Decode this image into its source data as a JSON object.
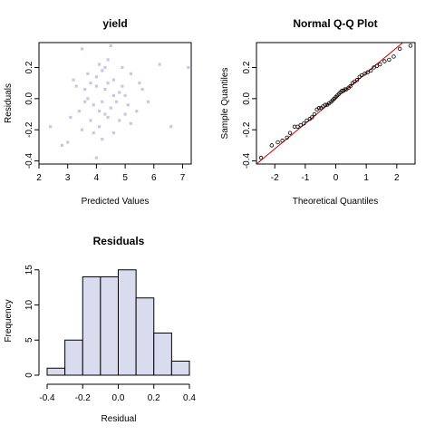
{
  "chart_data": [
    {
      "type": "scatter",
      "title": "yield",
      "xlabel": "Predicted Values",
      "ylabel": "Residuals",
      "xlim": [
        2,
        7.3
      ],
      "ylim": [
        -0.42,
        0.36
      ],
      "xticks": [
        2,
        3,
        4,
        5,
        6,
        7
      ],
      "yticks": [
        -0.4,
        -0.2,
        0.0,
        0.2
      ],
      "ytick_labels": [
        "-0.4",
        "-0.2",
        "0.0",
        "0.2"
      ],
      "point_color": "#c8c8e6",
      "points": [
        [
          3.5,
          0.32
        ],
        [
          4.5,
          0.34
        ],
        [
          4.4,
          0.25
        ],
        [
          4.1,
          0.22
        ],
        [
          4.3,
          0.2
        ],
        [
          6.2,
          0.22
        ],
        [
          7.2,
          0.2
        ],
        [
          3.2,
          0.12
        ],
        [
          4.2,
          0.18
        ],
        [
          5.2,
          0.16
        ],
        [
          3.8,
          0.1
        ],
        [
          4.0,
          0.08
        ],
        [
          4.6,
          0.12
        ],
        [
          5.5,
          0.1
        ],
        [
          4.8,
          0.04
        ],
        [
          3.7,
          0.0
        ],
        [
          4.2,
          -0.02
        ],
        [
          5.0,
          0.02
        ],
        [
          3.9,
          -0.04
        ],
        [
          4.5,
          -0.06
        ],
        [
          3.4,
          -0.08
        ],
        [
          4.3,
          -0.1
        ],
        [
          5.4,
          -0.08
        ],
        [
          3.1,
          -0.12
        ],
        [
          3.8,
          -0.14
        ],
        [
          4.4,
          -0.12
        ],
        [
          5.2,
          -0.16
        ],
        [
          2.4,
          -0.18
        ],
        [
          3.5,
          -0.2
        ],
        [
          4.1,
          -0.18
        ],
        [
          4.6,
          -0.22
        ],
        [
          3.0,
          -0.28
        ],
        [
          4.2,
          -0.26
        ],
        [
          6.6,
          -0.18
        ],
        [
          2.8,
          -0.3
        ],
        [
          4.0,
          -0.38
        ],
        [
          5.6,
          0.06
        ],
        [
          4.9,
          0.08
        ],
        [
          3.6,
          0.06
        ],
        [
          4.7,
          -0.02
        ],
        [
          5.1,
          -0.04
        ],
        [
          4.0,
          0.14
        ],
        [
          3.9,
          -0.22
        ],
        [
          4.6,
          0.02
        ],
        [
          3.3,
          0.08
        ],
        [
          5.8,
          -0.02
        ],
        [
          4.3,
          0.06
        ],
        [
          4.8,
          -0.14
        ],
        [
          3.6,
          -0.02
        ],
        [
          4.4,
          0.1
        ],
        [
          5.0,
          -0.1
        ],
        [
          4.1,
          -0.08
        ],
        [
          3.7,
          0.16
        ],
        [
          4.9,
          0.2
        ]
      ]
    },
    {
      "type": "scatter",
      "title": "Normal Q-Q Plot",
      "xlabel": "Theoretical Quantiles",
      "ylabel": "Sample Quantiles",
      "xlim": [
        -2.6,
        2.6
      ],
      "ylim": [
        -0.42,
        0.36
      ],
      "xticks": [
        -2,
        -1,
        0,
        1,
        2
      ],
      "yticks": [
        -0.4,
        -0.2,
        0.0,
        0.2
      ],
      "ytick_labels": [
        "-0.4",
        "-0.2",
        "0.0",
        "0.2"
      ],
      "line_color": "#cc0000",
      "line": [
        [
          -2.6,
          -0.42
        ],
        [
          2.2,
          0.36
        ]
      ],
      "points": [
        [
          -2.45,
          -0.38
        ],
        [
          -2.1,
          -0.3
        ],
        [
          -1.9,
          -0.28
        ],
        [
          -1.75,
          -0.27
        ],
        [
          -1.6,
          -0.25
        ],
        [
          -1.5,
          -0.22
        ],
        [
          -1.35,
          -0.18
        ],
        [
          -1.25,
          -0.18
        ],
        [
          -1.15,
          -0.17
        ],
        [
          -1.05,
          -0.16
        ],
        [
          -0.95,
          -0.14
        ],
        [
          -0.85,
          -0.13
        ],
        [
          -0.78,
          -0.12
        ],
        [
          -0.7,
          -0.1
        ],
        [
          -0.62,
          -0.07
        ],
        [
          -0.55,
          -0.06
        ],
        [
          -0.48,
          -0.06
        ],
        [
          -0.42,
          -0.05
        ],
        [
          -0.35,
          -0.04
        ],
        [
          -0.28,
          -0.04
        ],
        [
          -0.22,
          -0.03
        ],
        [
          -0.15,
          -0.02
        ],
        [
          -0.1,
          -0.01
        ],
        [
          -0.05,
          0.0
        ],
        [
          0.0,
          0.01
        ],
        [
          0.05,
          0.02
        ],
        [
          0.1,
          0.03
        ],
        [
          0.15,
          0.04
        ],
        [
          0.2,
          0.05
        ],
        [
          0.25,
          0.05
        ],
        [
          0.3,
          0.06
        ],
        [
          0.35,
          0.06
        ],
        [
          0.42,
          0.07
        ],
        [
          0.48,
          0.08
        ],
        [
          0.55,
          0.1
        ],
        [
          0.62,
          0.11
        ],
        [
          0.7,
          0.12
        ],
        [
          0.78,
          0.14
        ],
        [
          0.85,
          0.15
        ],
        [
          0.95,
          0.16
        ],
        [
          1.05,
          0.17
        ],
        [
          1.15,
          0.18
        ],
        [
          1.25,
          0.2
        ],
        [
          1.35,
          0.21
        ],
        [
          1.45,
          0.22
        ],
        [
          1.6,
          0.24
        ],
        [
          1.75,
          0.25
        ],
        [
          1.9,
          0.27
        ],
        [
          2.1,
          0.32
        ],
        [
          2.45,
          0.34
        ]
      ]
    },
    {
      "type": "bar",
      "title": "Residuals",
      "xlabel": "Residual",
      "ylabel": "Frequency",
      "xlim": [
        -0.4,
        0.4
      ],
      "ylim": [
        0,
        16
      ],
      "xticks": [
        -0.4,
        -0.2,
        0.0,
        0.2,
        0.4
      ],
      "xtick_labels": [
        "-0.4",
        "-0.2",
        "0.0",
        "0.2",
        "0.4"
      ],
      "yticks": [
        0,
        5,
        10,
        15
      ],
      "bar_color": "#d9dcef",
      "bins": [
        [
          -0.4,
          -0.3,
          1
        ],
        [
          -0.3,
          -0.2,
          5
        ],
        [
          -0.2,
          -0.1,
          14
        ],
        [
          -0.1,
          0.0,
          14
        ],
        [
          0.0,
          0.1,
          15
        ],
        [
          0.1,
          0.2,
          11
        ],
        [
          0.2,
          0.3,
          6
        ],
        [
          0.3,
          0.4,
          2
        ]
      ]
    }
  ]
}
